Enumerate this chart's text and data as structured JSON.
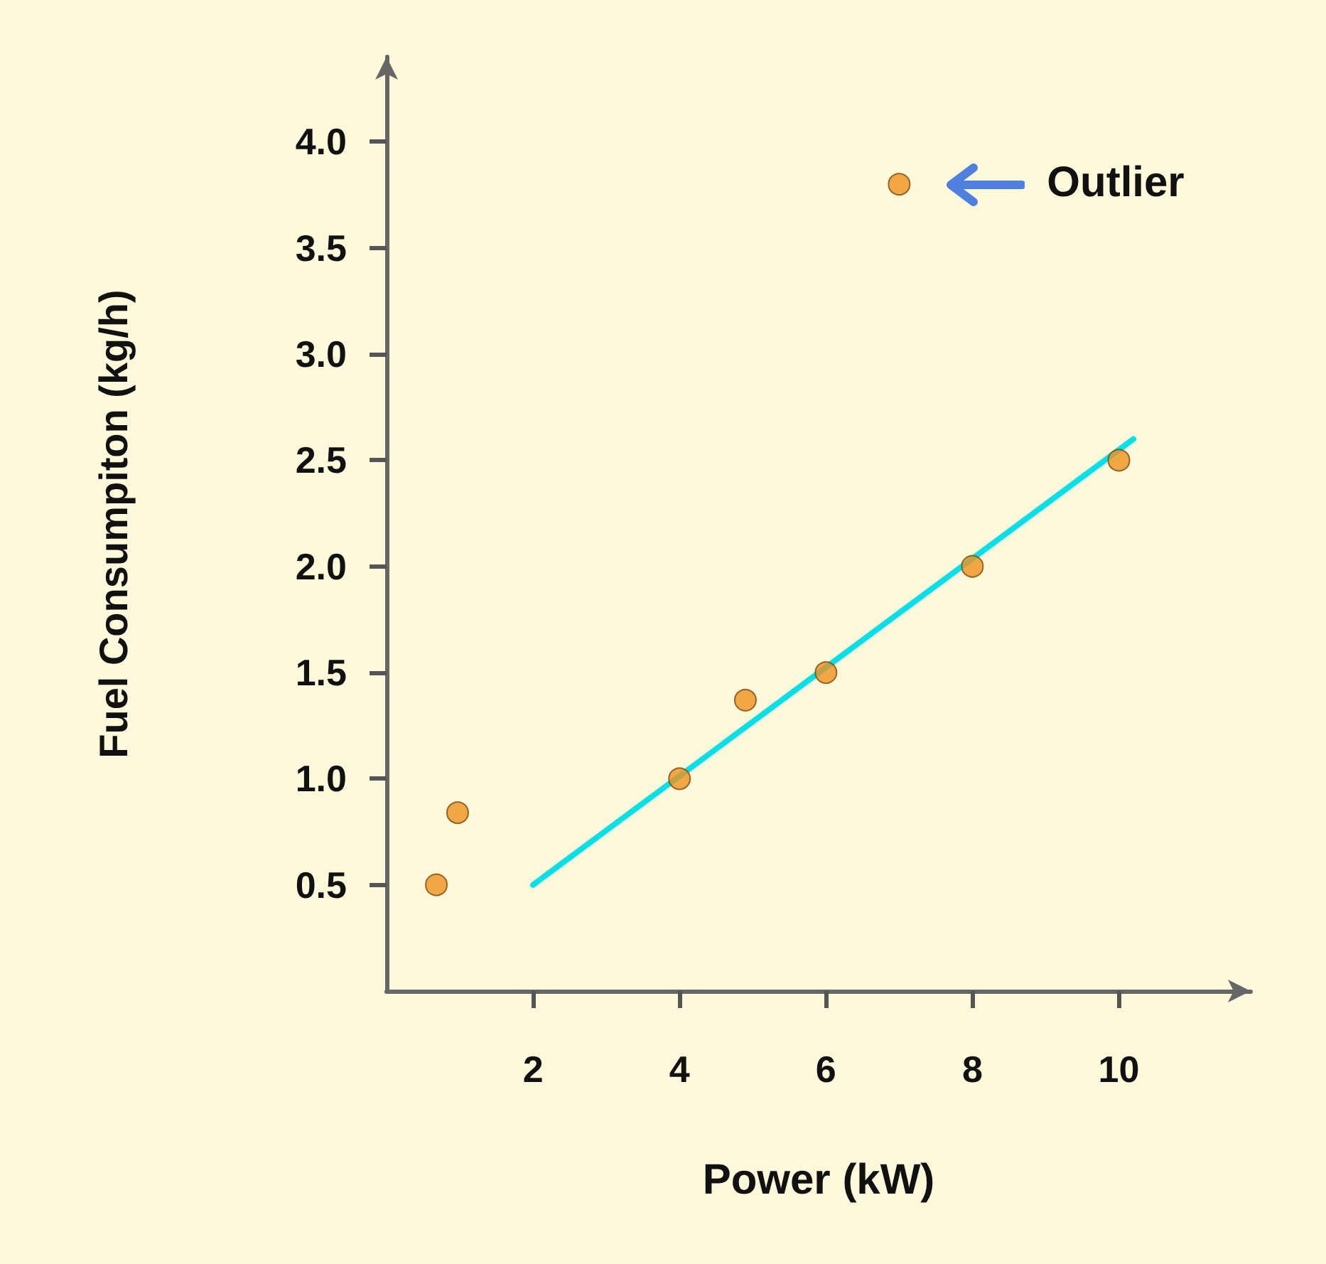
{
  "chart_data": {
    "type": "scatter",
    "xlabel": "Power (kW)",
    "ylabel": "Fuel Consumpiton (kg/h)",
    "series": [
      {
        "color": "#f0921e",
        "marker": "circle",
        "x": [
          0.68,
          0.97,
          4,
          4.9,
          6,
          8,
          10,
          7
        ],
        "values": [
          0.5,
          0.84,
          1.0,
          1.37,
          1.5,
          2.0,
          2.5,
          3.8
        ]
      },
      {
        "type": "line",
        "color": "#00e0e8",
        "x": [
          2,
          10.2
        ],
        "values": [
          0.5,
          2.6
        ]
      }
    ],
    "annotations": [
      "Outlier"
    ],
    "xlim": [
      0,
      11.8
    ],
    "ylim": [
      0,
      4.4
    ],
    "xticks": [
      2,
      4,
      6,
      8,
      10
    ],
    "yticks": [
      0.5,
      {
        "value": 1,
        "label": "1.0"
      },
      1.5,
      {
        "value": 2,
        "label": "2.0"
      },
      2.5,
      {
        "value": 3,
        "label": "3.0"
      },
      3.5,
      {
        "value": 4,
        "label": "4.0"
      }
    ],
    "grid": false
  }
}
